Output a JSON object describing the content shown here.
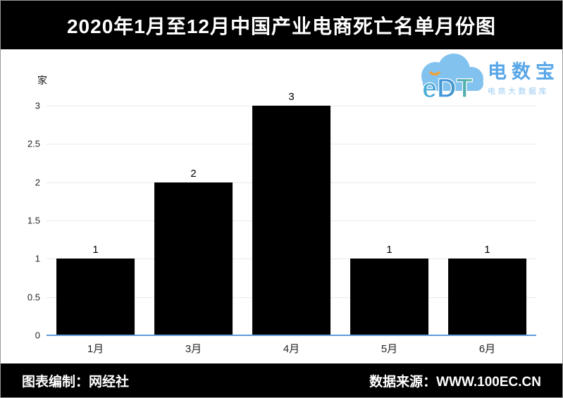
{
  "header": {
    "title": "2020年1月至12月中国产业电商死亡名单月份图"
  },
  "logo": {
    "letters": "eDT",
    "brand": "电数宝",
    "subtitle": "电商大数据库",
    "cloud_color": "#82c2ee",
    "brand_color": "#58a6e8",
    "subtitle_color": "#9ccbf0",
    "accent_color": "#f0a23c"
  },
  "footer": {
    "credit": "图表编制：网经社",
    "source": "数据来源：WWW.100EC.CN"
  },
  "colors": {
    "bar": "#000000",
    "baseline": "#5b9bd5",
    "gridline": "#ebebeb",
    "header_bg": "#000000",
    "title_text": "#ffffff"
  },
  "chart_data": {
    "type": "bar",
    "title": "2020年1月至12月中国产业电商死亡名单月份图",
    "unit_label": "家",
    "categories": [
      "1月",
      "3月",
      "4月",
      "5月",
      "6月"
    ],
    "values": [
      1,
      2,
      3,
      1,
      1
    ],
    "y_ticks": [
      0,
      0.5,
      1,
      1.5,
      2,
      2.5,
      3
    ],
    "y_tick_labels": [
      "0",
      "0.5",
      "1",
      "1.5",
      "2",
      "2.5",
      "3"
    ],
    "xlabel": "",
    "ylabel": "家",
    "ylim": [
      0,
      3
    ],
    "grid": true,
    "legend": false,
    "bar_color": "#000000"
  }
}
